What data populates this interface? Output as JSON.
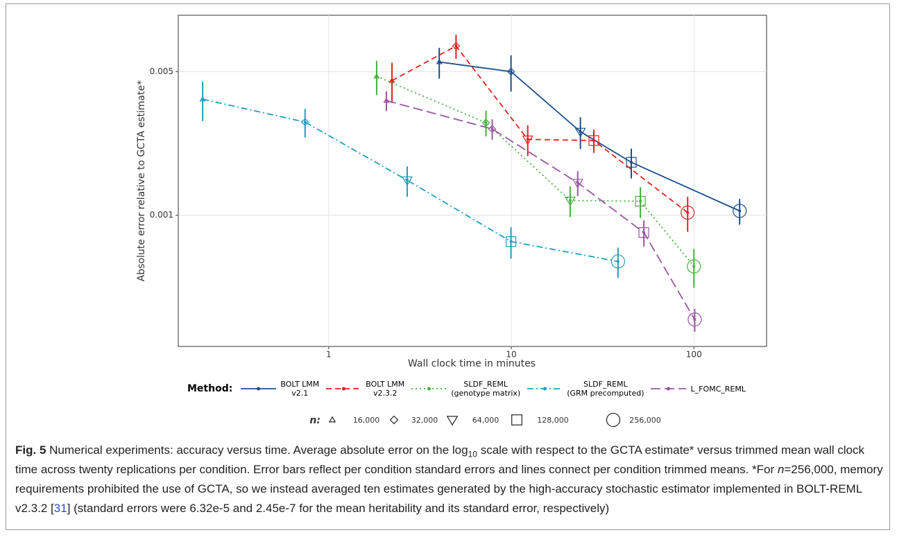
{
  "chart_data": {
    "type": "line",
    "x_label": "Wall clock time in minutes",
    "y_label": "Absolute error relative to GCTA estimate*",
    "log_x": true,
    "log_y": true,
    "grid": true,
    "xlim": [
      0.15,
      250
    ],
    "ylim": [
      0.00023,
      0.0094
    ],
    "xticks": [
      1,
      10,
      100
    ],
    "yticks": [
      0.001,
      0.005
    ],
    "legend_title": "Method:",
    "series": [
      {
        "name": "BOLT LMM\nv2.1",
        "color": "#1a4f8b",
        "dash": "solid",
        "x": [
          4.03,
          9.96,
          23.9,
          45.4,
          178
        ],
        "values": [
          0.00557,
          0.005,
          0.00255,
          0.00181,
          0.00105
        ],
        "errors": [
          0.00095,
          0.001,
          0.00045,
          0.0003,
          0.00015
        ]
      },
      {
        "name": "BOLT LMM\nv2.3.2",
        "color": "#e3211c",
        "dash": "dashed",
        "x": [
          2.22,
          4.98,
          12.3,
          28.3,
          92.4
        ],
        "values": [
          0.00452,
          0.00666,
          0.00234,
          0.00231,
          0.00103
        ],
        "errors": [
          0.001,
          0.0009,
          0.0004,
          0.0003,
          0.0002
        ]
      },
      {
        "name": "SLDF_REML\n(genotype matrix)",
        "color": "#44b03a",
        "dash": "dotted",
        "x": [
          1.83,
          7.26,
          21.0,
          50.9,
          100
        ],
        "values": [
          0.00474,
          0.00282,
          0.00118,
          0.00117,
          0.000564
        ],
        "errors": [
          0.0009,
          0.0004,
          0.0002,
          0.0002,
          0.00012
        ]
      },
      {
        "name": "SLDF_REML\n(GRM precomputed)",
        "color": "#1f9dbf",
        "dash": "dashdot",
        "x": [
          0.204,
          0.742,
          2.69,
          9.96,
          38.4
        ],
        "values": [
          0.00367,
          0.00284,
          0.00148,
          0.000745,
          0.000596
        ],
        "errors": [
          0.0008,
          0.00045,
          0.00025,
          0.00013,
          0.0001
        ]
      },
      {
        "name": "L_FOMC_REML",
        "color": "#9a55a3",
        "dash": "longdash",
        "x": [
          2.07,
          7.86,
          23.1,
          53.2,
          101
        ],
        "values": [
          0.00361,
          0.00263,
          0.00144,
          0.000824,
          0.000311
        ],
        "errors": [
          0.0004,
          0.0003,
          0.0002,
          0.00012,
          4e-05
        ]
      }
    ],
    "shape_legend": {
      "title": "n:",
      "shapes": [
        "triangle",
        "diamond",
        "triangle-down",
        "square",
        "circle"
      ],
      "labels": [
        "16,000",
        "32,000",
        "64,000",
        "128,000",
        "256,000"
      ]
    }
  },
  "caption": [
    {
      "text": "Fig. 5",
      "style": "bold"
    },
    {
      "text": " Numerical experiments: accuracy versus time. Average absolute error on the log",
      "style": "normal"
    },
    {
      "text": "10",
      "style": "sub"
    },
    {
      "text": " scale with respect to the GCTA estimate* versus trimmed mean wall clock time across twenty replications per condition. Error bars reflect per condition standard errors and lines connect per condition trimmed means. *For ",
      "style": "normal"
    },
    {
      "text": "n",
      "style": "italic"
    },
    {
      "text": "=256,000, memory requirements prohibited the use of GCTA, so we instead averaged ten estimates generated by the high-accuracy stochastic estimator implemented in BOLT-REML v2.3.2 [",
      "style": "normal"
    },
    {
      "text": "31",
      "style": "link"
    },
    {
      "text": "] (standard errors were 6.32e-5 and 2.45e-7 for the mean heritability and its standard error, respectively)",
      "style": "normal"
    }
  ]
}
